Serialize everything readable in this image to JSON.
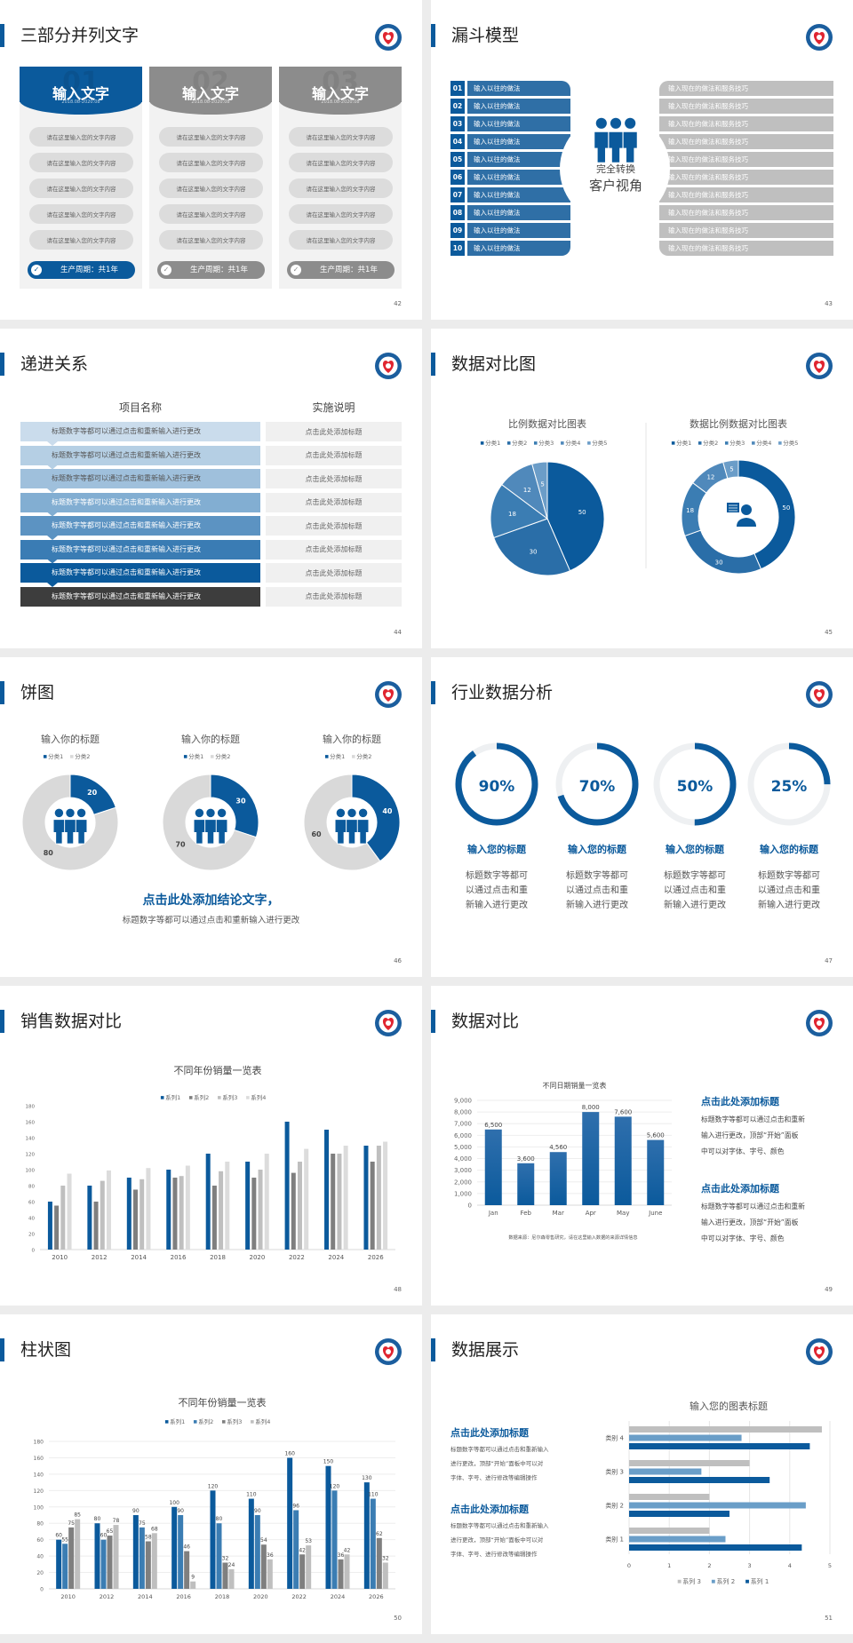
{
  "colors": {
    "accent": "#0b5a9c",
    "gray": "#8c8c8c",
    "light_gray": "#dcdcdc"
  },
  "slides": {
    "parallel": {
      "title": "三部分并列文字",
      "page": "42",
      "cards": [
        {
          "title": "输入文字",
          "number": "01",
          "date": "2018.08-2020.08",
          "color": "#0b5a9c",
          "items": [
            "请在这里输入您的文字内容",
            "请在这里输入您的文字内容",
            "请在这里输入您的文字内容",
            "请在这里输入您的文字内容",
            "请在这里输入您的文字内容"
          ],
          "footer": "生产周期：共1年"
        },
        {
          "title": "输入文字",
          "number": "02",
          "date": "2018.08-2020.08",
          "color": "#8c8c8c",
          "items": [
            "请在这里输入您的文字内容",
            "请在这里输入您的文字内容",
            "请在这里输入您的文字内容",
            "请在这里输入您的文字内容",
            "请在这里输入您的文字内容"
          ],
          "footer": "生产周期：共1年"
        },
        {
          "title": "输入文字",
          "number": "03",
          "date": "2018.08-2020.08",
          "color": "#8c8c8c",
          "items": [
            "请在这里输入您的文字内容",
            "请在这里输入您的文字内容",
            "请在这里输入您的文字内容",
            "请在这里输入您的文字内容",
            "请在这里输入您的文字内容"
          ],
          "footer": "生产周期：共1年"
        }
      ]
    },
    "funnel": {
      "title": "漏斗模型",
      "page": "43",
      "left_items": [
        {
          "num": "01",
          "label": "输入以往的做法"
        },
        {
          "num": "02",
          "label": "输入以往的做法"
        },
        {
          "num": "03",
          "label": "输入以往的做法"
        },
        {
          "num": "04",
          "label": "输入以往的做法"
        },
        {
          "num": "05",
          "label": "输入以往的做法"
        },
        {
          "num": "06",
          "label": "输入以往的做法"
        },
        {
          "num": "07",
          "label": "输入以往的做法"
        },
        {
          "num": "08",
          "label": "输入以往的做法"
        },
        {
          "num": "09",
          "label": "输入以往的做法"
        },
        {
          "num": "10",
          "label": "输入以往的做法"
        }
      ],
      "right_items": [
        "输入现在的做法和服务技巧",
        "输入现在的做法和服务技巧",
        "输入现在的做法和服务技巧",
        "输入现在的做法和服务技巧",
        "输入现在的做法和服务技巧",
        "输入现在的做法和服务技巧",
        "输入现在的做法和服务技巧",
        "输入现在的做法和服务技巧",
        "输入现在的做法和服务技巧",
        "输入现在的做法和服务技巧"
      ],
      "center_line1": "完全转换",
      "center_line2": "客户视角",
      "icon": "people-group-icon"
    },
    "progression": {
      "title": "递进关系",
      "page": "44",
      "header_left": "项目名称",
      "header_right": "实施说明",
      "rows": [
        {
          "left": "标题数字等都可以通过点击和重新输入进行更改",
          "right": "点击此处添加标题",
          "color": "#cadcec"
        },
        {
          "left": "标题数字等都可以通过点击和重新输入进行更改",
          "right": "点击此处添加标题",
          "color": "#b5cfe4"
        },
        {
          "left": "标题数字等都可以通过点击和重新输入进行更改",
          "right": "点击此处添加标题",
          "color": "#9fc0dc"
        },
        {
          "left": "标题数字等都可以通过点击和重新输入进行更改",
          "right": "点击此处添加标题",
          "color": "#82aed2"
        },
        {
          "left": "标题数字等都可以通过点击和重新输入进行更改",
          "right": "点击此处添加标题",
          "color": "#5c93c2"
        },
        {
          "left": "标题数字等都可以通过点击和重新输入进行更改",
          "right": "点击此处添加标题",
          "color": "#3a7cb4"
        },
        {
          "left": "标题数字等都可以通过点击和重新输入进行更改",
          "right": "点击此处添加标题",
          "color": "#0b5a9c"
        },
        {
          "left": "标题数字等都可以通过点击和重新输入进行更改",
          "right": "点击此处添加标题",
          "color": "#3d3d3d"
        }
      ]
    },
    "compare": {
      "title": "数据对比图",
      "page": "45",
      "center_icon": "customer-service-icon"
    },
    "pies": {
      "title": "饼图",
      "page": "46",
      "conclusion": "点击此处添加结论文字，",
      "subtitle": "标题数字等都可以通过点击和重新输入进行更改",
      "center_icon": "people-group-icon"
    },
    "industry": {
      "title": "行业数据分析",
      "page": "47",
      "items": [
        {
          "percent": 90,
          "value": "90%",
          "title": "输入您的标题",
          "lines": [
            "标题数字等都可",
            "以通过点击和重",
            "新输入进行更改"
          ]
        },
        {
          "percent": 70,
          "value": "70%",
          "title": "输入您的标题",
          "lines": [
            "标题数字等都可",
            "以通过点击和重",
            "新输入进行更改"
          ]
        },
        {
          "percent": 50,
          "value": "50%",
          "title": "输入您的标题",
          "lines": [
            "标题数字等都可",
            "以通过点击和重",
            "新输入进行更改"
          ]
        },
        {
          "percent": 25,
          "value": "25%",
          "title": "输入您的标题",
          "lines": [
            "标题数字等都可",
            "以通过点击和重",
            "新输入进行更改"
          ]
        }
      ]
    },
    "sales": {
      "title": "销售数据对比",
      "page": "48"
    },
    "datacompare": {
      "title": "数据对比",
      "page": "49",
      "source": "数据来源：尼尔森零售研究，请在这里输入数据的来源详情信息",
      "blocks": [
        {
          "heading": "点击此处添加标题",
          "lines": [
            "标题数字等都可以通过点击和重新",
            "输入进行更改，顶部“开始”面板",
            "中可以对字体、字号、颜色"
          ]
        },
        {
          "heading": "点击此处添加标题",
          "lines": [
            "标题数字等都可以通过点击和重新",
            "输入进行更改，顶部“开始”面板",
            "中可以对字体、字号、颜色"
          ]
        }
      ]
    },
    "columns": {
      "title": "柱状图",
      "page": "50"
    },
    "display": {
      "title": "数据展示",
      "page": "51",
      "blocks": [
        {
          "heading": "点击此处添加标题",
          "lines": [
            "标题数字等都可以通过点击和重新输入",
            "进行更改，顶部“开始”面板中可以对",
            "字体、字号、进行修改等编辑操作"
          ]
        },
        {
          "heading": "点击此处添加标题",
          "lines": [
            "标题数字等都可以通过点击和重新输入",
            "进行更改，顶部“开始”面板中可以对",
            "字体、字号、进行修改等编辑操作"
          ]
        }
      ]
    }
  },
  "chart_data": [
    {
      "type": "pie",
      "title": "比例数据对比图表",
      "categories": [
        "分类1",
        "分类2",
        "分类3",
        "分类4",
        "分类5"
      ],
      "values": [
        50,
        30,
        18,
        12,
        5
      ],
      "colors": [
        "#0b5a9c",
        "#2a6ea8",
        "#3b7db3",
        "#5089bb",
        "#6b9dc8"
      ],
      "legend": "top"
    },
    {
      "type": "pie",
      "title": "数据比例数据对比图表",
      "donut": true,
      "categories": [
        "分类1",
        "分类2",
        "分类3",
        "分类4",
        "分类5"
      ],
      "values": [
        50,
        30,
        18,
        12,
        5
      ],
      "colors": [
        "#0b5a9c",
        "#2a6ea8",
        "#3b7db3",
        "#5089bb",
        "#6b9dc8"
      ],
      "legend": "top"
    },
    {
      "type": "pie",
      "title": "输入你的标题",
      "donut": true,
      "categories": [
        "分类1",
        "分类2"
      ],
      "values": [
        20,
        80
      ],
      "colors": [
        "#0b5a9c",
        "#d9d9d9"
      ],
      "legend": "top"
    },
    {
      "type": "pie",
      "title": "输入你的标题",
      "donut": true,
      "categories": [
        "分类1",
        "分类2"
      ],
      "values": [
        30,
        70
      ],
      "colors": [
        "#0b5a9c",
        "#d9d9d9"
      ],
      "legend": "top"
    },
    {
      "type": "pie",
      "title": "输入你的标题",
      "donut": true,
      "categories": [
        "分类1",
        "分类2"
      ],
      "values": [
        40,
        60
      ],
      "colors": [
        "#0b5a9c",
        "#d9d9d9"
      ],
      "legend": "top"
    },
    {
      "type": "bar",
      "title": "不同年份销量一览表",
      "categories": [
        "2010",
        "2012",
        "2014",
        "2016",
        "2018",
        "2020",
        "2022",
        "2024",
        "2026"
      ],
      "ylim": [
        0,
        180
      ],
      "yticks": [
        0,
        20,
        40,
        60,
        80,
        100,
        120,
        140,
        160,
        180
      ],
      "legend": "top",
      "grid": false,
      "series": [
        {
          "name": "系列1",
          "color": "#0b5a9c",
          "values": [
            60,
            80,
            90,
            100,
            120,
            110,
            160,
            150,
            130
          ]
        },
        {
          "name": "系列2",
          "color": "#7f7f7f",
          "values": [
            55,
            60,
            75,
            90,
            80,
            90,
            96,
            120,
            110
          ]
        },
        {
          "name": "系列3",
          "color": "#bfbfbf",
          "values": [
            80,
            86,
            88,
            92,
            98,
            100,
            110,
            120,
            130
          ]
        },
        {
          "name": "系列4",
          "color": "#dcdcdc",
          "values": [
            95,
            99,
            102,
            105,
            110,
            120,
            126,
            130,
            135
          ]
        }
      ]
    },
    {
      "type": "bar",
      "title": "不同日期销量一览表",
      "categories": [
        "Jan",
        "Feb",
        "Mar",
        "Apr",
        "May",
        "June"
      ],
      "ylim": [
        0,
        9000
      ],
      "yticks": [
        "0",
        "1,000",
        "2,000",
        "3,000",
        "4,000",
        "5,000",
        "6,000",
        "7,000",
        "8,000",
        "9,000"
      ],
      "grid": true,
      "series": [
        {
          "color": "#0b5a9c",
          "values": [
            6500,
            3600,
            4560,
            8000,
            7600,
            5600
          ],
          "labels": [
            "6,500",
            "3,600",
            "4,560",
            "8,000",
            "7,600",
            "5,600"
          ]
        }
      ]
    },
    {
      "type": "bar",
      "title": "不同年份销量一览表",
      "categories": [
        "2010",
        "2012",
        "2014",
        "2016",
        "2018",
        "2020",
        "2022",
        "2024",
        "2026"
      ],
      "ylim": [
        0,
        180
      ],
      "yticks": [
        0,
        20,
        40,
        60,
        80,
        100,
        120,
        140,
        160,
        180
      ],
      "legend": "top",
      "grid": true,
      "data_labels": true,
      "series": [
        {
          "name": "系列1",
          "color": "#0b5a9c",
          "values": [
            60,
            80,
            90,
            100,
            120,
            110,
            160,
            150,
            130
          ]
        },
        {
          "name": "系列2",
          "color": "#3b7db3",
          "values": [
            55,
            60,
            75,
            90,
            80,
            90,
            96,
            120,
            110
          ]
        },
        {
          "name": "系列3",
          "color": "#7f7f7f",
          "values": [
            75,
            65,
            58,
            46,
            32,
            54,
            42,
            36,
            62
          ]
        },
        {
          "name": "系列4",
          "color": "#bfbfbf",
          "values": [
            85,
            78,
            68,
            9,
            24,
            36,
            53,
            42,
            32
          ]
        }
      ]
    },
    {
      "type": "bar",
      "orientation": "horizontal",
      "title": "输入您的图表标题",
      "categories": [
        "类别 1",
        "类别 2",
        "类别 3",
        "类别 4"
      ],
      "xlim": [
        0,
        5
      ],
      "xticks": [
        0,
        1,
        2,
        3,
        4,
        5
      ],
      "legend": "bottom",
      "grid": true,
      "series": [
        {
          "name": "系列 1",
          "color": "#0b5a9c",
          "values": [
            4.3,
            2.5,
            3.5,
            4.5
          ]
        },
        {
          "name": "系列 2",
          "color": "#6a9ec8",
          "values": [
            2.4,
            4.4,
            1.8,
            2.8
          ]
        },
        {
          "name": "系列 3",
          "color": "#bfbfbf",
          "values": [
            2.0,
            2.0,
            3.0,
            4.8
          ]
        }
      ]
    }
  ]
}
